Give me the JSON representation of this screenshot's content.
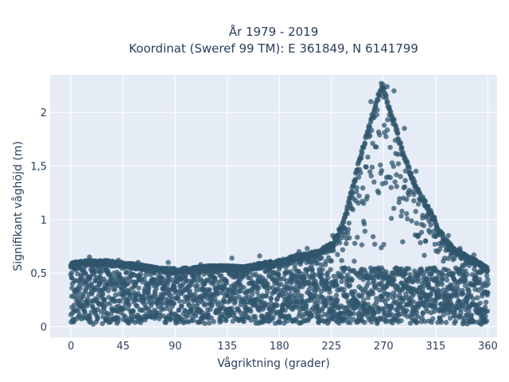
{
  "chart_data": {
    "type": "scatter",
    "title_line1": "År 1979 - 2019",
    "title_line2": "Koordinat (Sweref 99 TM): E 361849, N 6141799",
    "xlabel": "Vågriktning (grader)",
    "ylabel": "Signifikant våghöjd (m)",
    "xlim": [
      -18,
      368
    ],
    "ylim": [
      -0.1,
      2.35
    ],
    "x_ticks": [
      0,
      45,
      90,
      135,
      180,
      225,
      270,
      315,
      360
    ],
    "x_tick_labels": [
      "0",
      "45",
      "90",
      "135",
      "180",
      "225",
      "270",
      "315",
      "360"
    ],
    "y_ticks": [
      0,
      0.5,
      1,
      1.5,
      2
    ],
    "y_tick_labels": [
      "0",
      "0,5",
      "1",
      "1,5",
      "2"
    ],
    "grid": true,
    "legend": "none",
    "series": [
      {
        "color": "#30566d",
        "envelope": {
          "x": [
            0,
            15,
            30,
            45,
            60,
            75,
            90,
            105,
            120,
            135,
            150,
            165,
            180,
            195,
            210,
            225,
            235,
            245,
            255,
            262,
            266,
            270,
            275,
            280,
            285,
            290,
            295,
            300,
            310,
            320,
            330,
            340,
            350,
            360
          ],
          "y_max": [
            0.6,
            0.62,
            0.62,
            0.6,
            0.58,
            0.55,
            0.55,
            0.55,
            0.57,
            0.57,
            0.56,
            0.6,
            0.62,
            0.67,
            0.7,
            0.78,
            0.98,
            1.4,
            1.8,
            2.05,
            2.2,
            2.27,
            2.05,
            1.9,
            1.7,
            1.55,
            1.4,
            1.28,
            1.1,
            0.88,
            0.75,
            0.68,
            0.62,
            0.55
          ],
          "y_min": [
            0.02,
            0.02,
            0.03,
            0.03,
            0.03,
            0.03,
            0.03,
            0.03,
            0.03,
            0.03,
            0.03,
            0.03,
            0.03,
            0.03,
            0.03,
            0.03,
            0.03,
            0.03,
            0.03,
            0.03,
            0.03,
            0.03,
            0.03,
            0.03,
            0.03,
            0.03,
            0.03,
            0.03,
            0.03,
            0.03,
            0.03,
            0.02,
            0.02,
            0.02
          ]
        },
        "outliers": [
          {
            "x": 16,
            "y": 0.65
          },
          {
            "x": 41,
            "y": 0.62
          },
          {
            "x": 58,
            "y": 0.6
          },
          {
            "x": 84,
            "y": 0.6
          },
          {
            "x": 112,
            "y": 0.58
          },
          {
            "x": 139,
            "y": 0.64
          },
          {
            "x": 163,
            "y": 0.66
          },
          {
            "x": 197,
            "y": 0.7
          },
          {
            "x": 204,
            "y": 0.73
          },
          {
            "x": 226,
            "y": 0.85
          },
          {
            "x": 259,
            "y": 2.1
          },
          {
            "x": 268,
            "y": 2.27
          },
          {
            "x": 273,
            "y": 2.24
          },
          {
            "x": 279,
            "y": 2.2
          },
          {
            "x": 288,
            "y": 1.85
          },
          {
            "x": 298,
            "y": 1.45
          },
          {
            "x": 314,
            "y": 1.02
          },
          {
            "x": 326,
            "y": 0.85
          },
          {
            "x": 336,
            "y": 0.73
          },
          {
            "x": 348,
            "y": 0.67
          }
        ]
      }
    ]
  }
}
